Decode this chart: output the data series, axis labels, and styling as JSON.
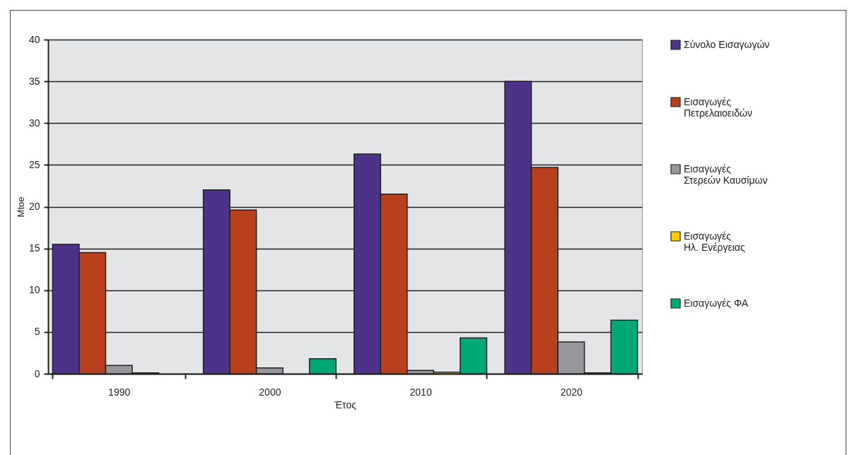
{
  "chart_data": {
    "type": "bar",
    "xlabel": "Έτος",
    "ylabel": "Mtoe",
    "categories": [
      "1990",
      "2000",
      "2010",
      "2020"
    ],
    "series": [
      {
        "name": "Σύνολο Εισαγωγών",
        "color": "#4e3188",
        "values": [
          15.5,
          22.0,
          26.3,
          35.0
        ]
      },
      {
        "name": "Εισαγωγές Πετρελαιοειδών",
        "color": "#b9401f",
        "values": [
          14.5,
          19.6,
          21.5,
          24.7
        ]
      },
      {
        "name": "Εισαγωγές Στερεών Καυσίμων",
        "color": "#96979b",
        "values": [
          1.0,
          0.7,
          0.4,
          3.8
        ]
      },
      {
        "name": "Εισαγωγές Ηλ. Ενέργειας",
        "color": "#ffcc00",
        "values": [
          0.1,
          0,
          0.2,
          0.1
        ]
      },
      {
        "name": "Εισαγωγές ΦΑ",
        "color": "#00a876",
        "values": [
          0,
          1.8,
          4.3,
          6.4
        ]
      }
    ],
    "ylim": [
      0,
      40
    ],
    "yticks": [
      0,
      5,
      10,
      15,
      20,
      25,
      30,
      35,
      40
    ],
    "grid": "y",
    "legend": "right"
  }
}
